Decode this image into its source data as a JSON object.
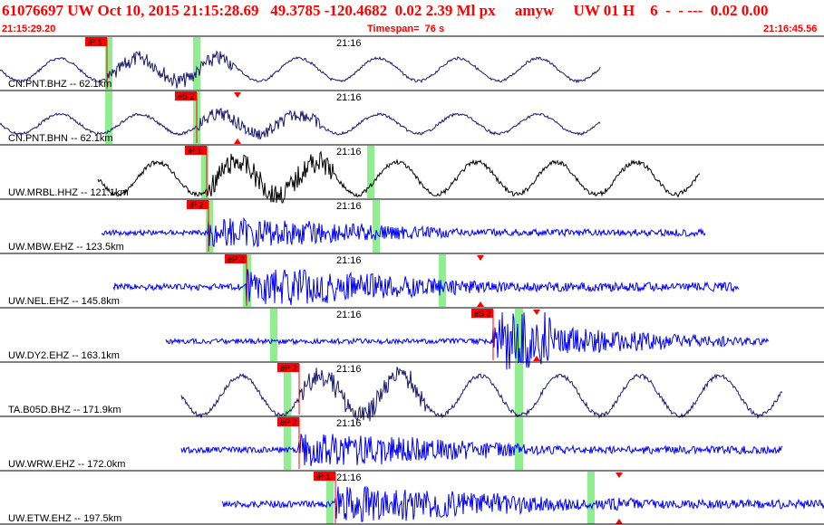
{
  "header": {
    "title": "61076697 UW Oct 10, 2015 21:15:28.69   49.3785 -120.4682  0.02 2.39 Ml px     amyw     UW 01 H    6  -  - ---  0.02 0.00",
    "start_time": "21:15:29.20",
    "timespan": "Timespan=  76 s",
    "end_time": "21:16:45.56"
  },
  "colors": {
    "header_red": "#ff0000",
    "phase_marker": "#ff0000",
    "trace_blue": "#0000ff",
    "trace_navy": "#1a1a6e",
    "trace_black": "#000000",
    "window_green": "#90ee90"
  },
  "traces": [
    {
      "label": "CN.PNT.BHZ -- 62.1km",
      "time_label": "21:16",
      "phase": "iP 1",
      "color": "navy",
      "style": "lowfreq"
    },
    {
      "label": "CN.PNT.BHN -- 62.1km",
      "time_label": "21:16",
      "phase": "eS 2",
      "color": "navy",
      "style": "lowfreq"
    },
    {
      "label": "UW.MRBL.HHZ -- 121.1km",
      "time_label": "21:16",
      "phase": "iP 1",
      "color": "black",
      "style": "lowfreq"
    },
    {
      "label": "UW.MBW.EHZ -- 123.5km",
      "time_label": "21:16",
      "phase": "iP 2",
      "color": "blue",
      "style": "highfreq"
    },
    {
      "label": "UW.NEL.EHZ -- 145.8km",
      "time_label": "21:16",
      "phase": "eP 2",
      "color": "blue",
      "style": "highfreq"
    },
    {
      "label": "UW.DY2.EHZ -- 163.1km",
      "time_label": "21:16",
      "phase": "eS 2",
      "color": "blue",
      "style": "highfreq"
    },
    {
      "label": "TA.B05D.BHZ -- 171.9km",
      "time_label": "21:16",
      "phase": "eP 2",
      "color": "navy",
      "style": "lowfreq"
    },
    {
      "label": "UW.WRW.EHZ -- 172.0km",
      "time_label": "21:16",
      "phase": "eP 2",
      "color": "blue",
      "style": "highfreq"
    },
    {
      "label": "UW.ETW.EHZ -- 197.5km",
      "time_label": "21:16",
      "phase": "iP 1",
      "color": "blue",
      "style": "highfreq"
    }
  ]
}
